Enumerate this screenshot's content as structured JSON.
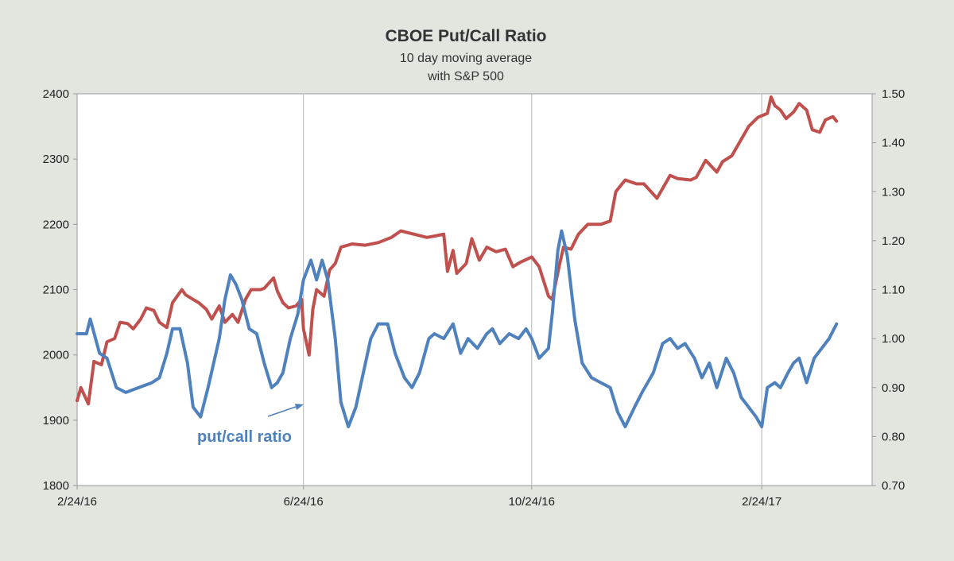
{
  "chart_data": {
    "type": "line",
    "title": "CBOE Put/Call Ratio",
    "subtitle": [
      "10 day moving average",
      "with S&P 500"
    ],
    "x_ticks": [
      "2/24/16",
      "6/24/16",
      "10/24/16",
      "2/24/17"
    ],
    "x_range": [
      "2016-02-24",
      "2017-04-24"
    ],
    "y_left": {
      "range": [
        1800,
        2400
      ],
      "ticks": [
        1800,
        1900,
        2000,
        2100,
        2200,
        2300,
        2400
      ]
    },
    "y_right": {
      "range": [
        0.7,
        1.5
      ],
      "ticks": [
        "0.70",
        "0.80",
        "0.90",
        "1.00",
        "1.10",
        "1.20",
        "1.30",
        "1.40",
        "1.50"
      ]
    },
    "grid": "vertical",
    "annotation": {
      "text": "put/call ratio"
    },
    "colors": {
      "sp500": "#c0504d",
      "put_call": "#4f81bd",
      "plot_bg": "#ffffff",
      "grid": "#b4b4b4"
    },
    "series": [
      {
        "axis": "left",
        "color": "#c0504d",
        "points": [
          [
            "2016-02-24",
            1930
          ],
          [
            "2016-02-26",
            1950
          ],
          [
            "2016-03-01",
            1925
          ],
          [
            "2016-03-04",
            1990
          ],
          [
            "2016-03-08",
            1985
          ],
          [
            "2016-03-11",
            2020
          ],
          [
            "2016-03-15",
            2025
          ],
          [
            "2016-03-18",
            2050
          ],
          [
            "2016-03-22",
            2048
          ],
          [
            "2016-03-25",
            2040
          ],
          [
            "2016-03-29",
            2055
          ],
          [
            "2016-04-01",
            2072
          ],
          [
            "2016-04-05",
            2068
          ],
          [
            "2016-04-08",
            2050
          ],
          [
            "2016-04-12",
            2042
          ],
          [
            "2016-04-15",
            2080
          ],
          [
            "2016-04-20",
            2100
          ],
          [
            "2016-04-22",
            2092
          ],
          [
            "2016-04-26",
            2085
          ],
          [
            "2016-04-29",
            2080
          ],
          [
            "2016-05-03",
            2070
          ],
          [
            "2016-05-06",
            2055
          ],
          [
            "2016-05-10",
            2075
          ],
          [
            "2016-05-13",
            2050
          ],
          [
            "2016-05-17",
            2062
          ],
          [
            "2016-05-20",
            2050
          ],
          [
            "2016-05-24",
            2085
          ],
          [
            "2016-05-27",
            2100
          ],
          [
            "2016-06-01",
            2100
          ],
          [
            "2016-06-03",
            2102
          ],
          [
            "2016-06-08",
            2118
          ],
          [
            "2016-06-10",
            2098
          ],
          [
            "2016-06-13",
            2080
          ],
          [
            "2016-06-16",
            2072
          ],
          [
            "2016-06-20",
            2075
          ],
          [
            "2016-06-23",
            2085
          ],
          [
            "2016-06-24",
            2040
          ],
          [
            "2016-06-27",
            2000
          ],
          [
            "2016-06-29",
            2070
          ],
          [
            "2016-07-01",
            2100
          ],
          [
            "2016-07-05",
            2090
          ],
          [
            "2016-07-08",
            2130
          ],
          [
            "2016-07-11",
            2140
          ],
          [
            "2016-07-14",
            2165
          ],
          [
            "2016-07-20",
            2170
          ],
          [
            "2016-07-27",
            2168
          ],
          [
            "2016-08-03",
            2172
          ],
          [
            "2016-08-10",
            2180
          ],
          [
            "2016-08-15",
            2190
          ],
          [
            "2016-08-22",
            2185
          ],
          [
            "2016-08-29",
            2180
          ],
          [
            "2016-09-02",
            2182
          ],
          [
            "2016-09-07",
            2185
          ],
          [
            "2016-09-09",
            2128
          ],
          [
            "2016-09-12",
            2160
          ],
          [
            "2016-09-14",
            2125
          ],
          [
            "2016-09-19",
            2140
          ],
          [
            "2016-09-22",
            2178
          ],
          [
            "2016-09-26",
            2145
          ],
          [
            "2016-09-30",
            2165
          ],
          [
            "2016-10-05",
            2158
          ],
          [
            "2016-10-10",
            2162
          ],
          [
            "2016-10-14",
            2135
          ],
          [
            "2016-10-18",
            2142
          ],
          [
            "2016-10-24",
            2150
          ],
          [
            "2016-10-28",
            2135
          ],
          [
            "2016-11-02",
            2090
          ],
          [
            "2016-11-04",
            2085
          ],
          [
            "2016-11-08",
            2140
          ],
          [
            "2016-11-10",
            2165
          ],
          [
            "2016-11-14",
            2162
          ],
          [
            "2016-11-18",
            2185
          ],
          [
            "2016-11-23",
            2200
          ],
          [
            "2016-11-30",
            2200
          ],
          [
            "2016-12-05",
            2205
          ],
          [
            "2016-12-08",
            2250
          ],
          [
            "2016-12-13",
            2268
          ],
          [
            "2016-12-19",
            2262
          ],
          [
            "2016-12-23",
            2262
          ],
          [
            "2016-12-30",
            2240
          ],
          [
            "2017-01-06",
            2275
          ],
          [
            "2017-01-10",
            2270
          ],
          [
            "2017-01-17",
            2268
          ],
          [
            "2017-01-20",
            2272
          ],
          [
            "2017-01-25",
            2298
          ],
          [
            "2017-01-31",
            2280
          ],
          [
            "2017-02-03",
            2296
          ],
          [
            "2017-02-08",
            2305
          ],
          [
            "2017-02-13",
            2330
          ],
          [
            "2017-02-17",
            2350
          ],
          [
            "2017-02-22",
            2364
          ],
          [
            "2017-02-27",
            2370
          ],
          [
            "2017-03-01",
            2395
          ],
          [
            "2017-03-03",
            2382
          ],
          [
            "2017-03-06",
            2375
          ],
          [
            "2017-03-09",
            2362
          ],
          [
            "2017-03-13",
            2372
          ],
          [
            "2017-03-16",
            2385
          ],
          [
            "2017-03-20",
            2375
          ],
          [
            "2017-03-23",
            2345
          ],
          [
            "2017-03-27",
            2341
          ],
          [
            "2017-03-30",
            2360
          ],
          [
            "2017-04-03",
            2365
          ],
          [
            "2017-04-05",
            2358
          ]
        ]
      },
      {
        "axis": "right",
        "color": "#4f81bd",
        "points": [
          [
            "2016-02-24",
            1.01
          ],
          [
            "2016-02-29",
            1.01
          ],
          [
            "2016-03-02",
            1.04
          ],
          [
            "2016-03-07",
            0.97
          ],
          [
            "2016-03-11",
            0.96
          ],
          [
            "2016-03-16",
            0.9
          ],
          [
            "2016-03-21",
            0.89
          ],
          [
            "2016-03-28",
            0.9
          ],
          [
            "2016-04-04",
            0.91
          ],
          [
            "2016-04-08",
            0.92
          ],
          [
            "2016-04-12",
            0.97
          ],
          [
            "2016-04-15",
            1.02
          ],
          [
            "2016-04-19",
            1.02
          ],
          [
            "2016-04-23",
            0.95
          ],
          [
            "2016-04-26",
            0.86
          ],
          [
            "2016-04-30",
            0.84
          ],
          [
            "2016-05-04",
            0.9
          ],
          [
            "2016-05-10",
            1.0
          ],
          [
            "2016-05-13",
            1.08
          ],
          [
            "2016-05-16",
            1.13
          ],
          [
            "2016-05-19",
            1.11
          ],
          [
            "2016-05-22",
            1.08
          ],
          [
            "2016-05-26",
            1.02
          ],
          [
            "2016-05-30",
            1.01
          ],
          [
            "2016-06-03",
            0.95
          ],
          [
            "2016-06-07",
            0.9
          ],
          [
            "2016-06-10",
            0.91
          ],
          [
            "2016-06-13",
            0.93
          ],
          [
            "2016-06-17",
            1.0
          ],
          [
            "2016-06-21",
            1.05
          ],
          [
            "2016-06-24",
            1.12
          ],
          [
            "2016-06-28",
            1.16
          ],
          [
            "2016-07-01",
            1.12
          ],
          [
            "2016-07-04",
            1.16
          ],
          [
            "2016-07-07",
            1.12
          ],
          [
            "2016-07-11",
            1.0
          ],
          [
            "2016-07-14",
            0.87
          ],
          [
            "2016-07-18",
            0.82
          ],
          [
            "2016-07-22",
            0.86
          ],
          [
            "2016-07-26",
            0.93
          ],
          [
            "2016-07-30",
            1.0
          ],
          [
            "2016-08-03",
            1.03
          ],
          [
            "2016-08-08",
            1.03
          ],
          [
            "2016-08-12",
            0.97
          ],
          [
            "2016-08-17",
            0.92
          ],
          [
            "2016-08-21",
            0.9
          ],
          [
            "2016-08-25",
            0.93
          ],
          [
            "2016-08-30",
            1.0
          ],
          [
            "2016-09-02",
            1.01
          ],
          [
            "2016-09-07",
            1.0
          ],
          [
            "2016-09-12",
            1.03
          ],
          [
            "2016-09-16",
            0.97
          ],
          [
            "2016-09-20",
            1.0
          ],
          [
            "2016-09-25",
            0.98
          ],
          [
            "2016-09-30",
            1.01
          ],
          [
            "2016-10-03",
            1.02
          ],
          [
            "2016-10-07",
            0.99
          ],
          [
            "2016-10-12",
            1.01
          ],
          [
            "2016-10-17",
            1.0
          ],
          [
            "2016-10-21",
            1.02
          ],
          [
            "2016-10-24",
            1.0
          ],
          [
            "2016-10-28",
            0.96
          ],
          [
            "2016-11-02",
            0.98
          ],
          [
            "2016-11-04",
            1.05
          ],
          [
            "2016-11-07",
            1.18
          ],
          [
            "2016-11-09",
            1.22
          ],
          [
            "2016-11-12",
            1.17
          ],
          [
            "2016-11-16",
            1.04
          ],
          [
            "2016-11-20",
            0.95
          ],
          [
            "2016-11-25",
            0.92
          ],
          [
            "2016-11-30",
            0.91
          ],
          [
            "2016-12-05",
            0.9
          ],
          [
            "2016-12-09",
            0.85
          ],
          [
            "2016-12-13",
            0.82
          ],
          [
            "2016-12-18",
            0.86
          ],
          [
            "2016-12-22",
            0.89
          ],
          [
            "2016-12-28",
            0.93
          ],
          [
            "2017-01-02",
            0.99
          ],
          [
            "2017-01-06",
            1.0
          ],
          [
            "2017-01-10",
            0.98
          ],
          [
            "2017-01-14",
            0.99
          ],
          [
            "2017-01-19",
            0.96
          ],
          [
            "2017-01-23",
            0.92
          ],
          [
            "2017-01-27",
            0.95
          ],
          [
            "2017-01-31",
            0.9
          ],
          [
            "2017-02-05",
            0.96
          ],
          [
            "2017-02-09",
            0.93
          ],
          [
            "2017-02-13",
            0.88
          ],
          [
            "2017-02-17",
            0.86
          ],
          [
            "2017-02-21",
            0.84
          ],
          [
            "2017-02-24",
            0.82
          ],
          [
            "2017-02-27",
            0.9
          ],
          [
            "2017-03-03",
            0.91
          ],
          [
            "2017-03-06",
            0.9
          ],
          [
            "2017-03-10",
            0.93
          ],
          [
            "2017-03-13",
            0.95
          ],
          [
            "2017-03-16",
            0.96
          ],
          [
            "2017-03-20",
            0.91
          ],
          [
            "2017-03-24",
            0.96
          ],
          [
            "2017-03-28",
            0.98
          ],
          [
            "2017-04-01",
            1.0
          ],
          [
            "2017-04-05",
            1.03
          ]
        ]
      }
    ]
  }
}
